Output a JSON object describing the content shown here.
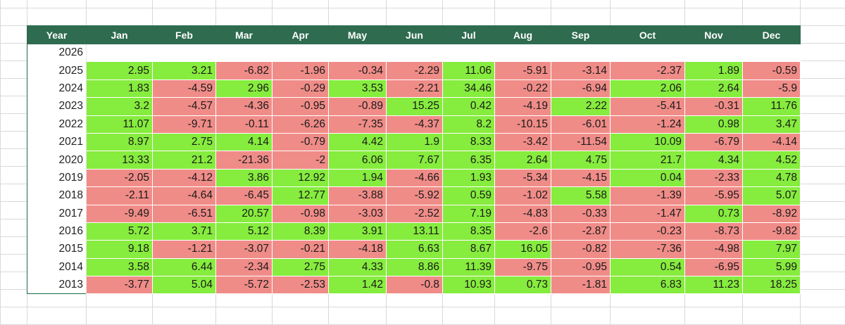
{
  "table": {
    "headers": [
      "Year",
      "Jan",
      "Feb",
      "Mar",
      "Apr",
      "May",
      "Jun",
      "Jul",
      "Aug",
      "Sep",
      "Oct",
      "Nov",
      "Dec"
    ],
    "rows": [
      {
        "year": "2026",
        "values": [
          "",
          "",
          "",
          "",
          "",
          "",
          "",
          "",
          "",
          "",
          "",
          ""
        ]
      },
      {
        "year": "2025",
        "values": [
          "2.95",
          "3.21",
          "-6.82",
          "-1.96",
          "-0.34",
          "-2.29",
          "11.06",
          "-5.91",
          "-3.14",
          "-2.37",
          "1.89",
          "-0.59"
        ]
      },
      {
        "year": "2024",
        "values": [
          "1.83",
          "-4.59",
          "2.96",
          "-0.29",
          "3.53",
          "-2.21",
          "34.46",
          "-0.22",
          "-6.94",
          "2.06",
          "2.64",
          "-5.9"
        ]
      },
      {
        "year": "2023",
        "values": [
          "3.2",
          "-4.57",
          "-4.36",
          "-0.95",
          "-0.89",
          "15.25",
          "0.42",
          "-4.19",
          "2.22",
          "-5.41",
          "-0.31",
          "11.76"
        ]
      },
      {
        "year": "2022",
        "values": [
          "11.07",
          "-9.71",
          "-0.11",
          "-6.26",
          "-7.35",
          "-4.37",
          "8.2",
          "-10.15",
          "-6.01",
          "-1.24",
          "0.98",
          "3.47"
        ]
      },
      {
        "year": "2021",
        "values": [
          "8.97",
          "2.75",
          "4.14",
          "-0.79",
          "4.42",
          "1.9",
          "8.33",
          "-3.42",
          "-11.54",
          "10.09",
          "-6.79",
          "-4.14"
        ]
      },
      {
        "year": "2020",
        "values": [
          "13.33",
          "21.2",
          "-21.36",
          "-2",
          "6.06",
          "7.67",
          "6.35",
          "2.64",
          "4.75",
          "21.7",
          "4.34",
          "4.52"
        ]
      },
      {
        "year": "2019",
        "values": [
          "-2.05",
          "-4.12",
          "3.86",
          "12.92",
          "1.94",
          "-4.66",
          "1.93",
          "-5.34",
          "-4.15",
          "0.04",
          "-2.33",
          "4.78"
        ]
      },
      {
        "year": "2018",
        "values": [
          "-2.11",
          "-4.64",
          "-6.45",
          "12.77",
          "-3.88",
          "-5.92",
          "0.59",
          "-1.02",
          "5.58",
          "-1.39",
          "-5.95",
          "5.07"
        ]
      },
      {
        "year": "2017",
        "values": [
          "-9.49",
          "-6.51",
          "20.57",
          "-0.98",
          "-3.03",
          "-2.52",
          "7.19",
          "-4.83",
          "-0.33",
          "-1.47",
          "0.73",
          "-8.92"
        ]
      },
      {
        "year": "2016",
        "values": [
          "5.72",
          "3.71",
          "5.12",
          "8.39",
          "3.91",
          "13.11",
          "8.35",
          "-2.6",
          "-2.87",
          "-0.23",
          "-8.73",
          "-9.82"
        ]
      },
      {
        "year": "2015",
        "values": [
          "9.18",
          "-1.21",
          "-3.07",
          "-0.21",
          "-4.18",
          "6.63",
          "8.67",
          "16.05",
          "-0.82",
          "-7.36",
          "-4.98",
          "7.97"
        ]
      },
      {
        "year": "2014",
        "values": [
          "3.58",
          "6.44",
          "-2.34",
          "2.75",
          "4.33",
          "8.86",
          "11.39",
          "-9.75",
          "-0.95",
          "0.54",
          "-6.95",
          "5.99"
        ]
      },
      {
        "year": "2013",
        "values": [
          "-3.77",
          "5.04",
          "-5.72",
          "-2.53",
          "1.42",
          "-0.8",
          "10.93",
          "0.73",
          "-1.81",
          "6.83",
          "11.23",
          "18.25"
        ]
      }
    ]
  },
  "colors": {
    "header_bg": "#2e6b4f",
    "header_text": "#ffffff",
    "positive": "#86ec3e",
    "negative": "#f08c88",
    "sheet_grid": "#d9d9d9"
  }
}
